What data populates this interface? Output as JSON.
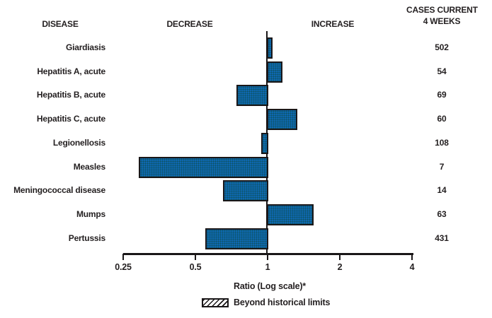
{
  "header": {
    "disease": "DISEASE",
    "decrease": "DECREASE",
    "increase": "INCREASE",
    "cases_line1": "CASES CURRENT",
    "cases_line2": "4 WEEKS"
  },
  "chart_data": {
    "type": "bar",
    "orientation": "horizontal",
    "scale": "log",
    "baseline_ratio": 1,
    "title": "",
    "xlabel": "Ratio (Log scale)*",
    "axis": {
      "min": 0.25,
      "max": 4,
      "ticks": [
        0.25,
        0.5,
        1,
        2,
        4
      ],
      "tick_labels": [
        "0.25",
        "0.5",
        "1",
        "2",
        "4"
      ]
    },
    "rows": [
      {
        "disease": "Giardiasis",
        "ratio": 1.05,
        "cases": "502",
        "beyond_historical_limits": false
      },
      {
        "disease": "Hepatitis A, acute",
        "ratio": 1.15,
        "cases": "54",
        "beyond_historical_limits": false
      },
      {
        "disease": "Hepatitis B, acute",
        "ratio": 0.74,
        "cases": "69",
        "beyond_historical_limits": false
      },
      {
        "disease": "Hepatitis C, acute",
        "ratio": 1.33,
        "cases": "60",
        "beyond_historical_limits": false
      },
      {
        "disease": "Legionellosis",
        "ratio": 0.94,
        "cases": "108",
        "beyond_historical_limits": false
      },
      {
        "disease": "Measles",
        "ratio": 0.29,
        "cases": "7",
        "beyond_historical_limits": false
      },
      {
        "disease": "Meningococcal disease",
        "ratio": 0.65,
        "cases": "14",
        "beyond_historical_limits": false
      },
      {
        "disease": "Mumps",
        "ratio": 1.55,
        "cases": "63",
        "beyond_historical_limits": false
      },
      {
        "disease": "Pertussis",
        "ratio": 0.55,
        "cases": "431",
        "beyond_historical_limits": false
      }
    ],
    "legend": [
      {
        "label": "Beyond historical limits",
        "swatch": "hatched"
      }
    ],
    "colors": {
      "bar_fill": "#0f6dc0",
      "bar_border": "#1a1718",
      "text": "#231f20"
    }
  }
}
